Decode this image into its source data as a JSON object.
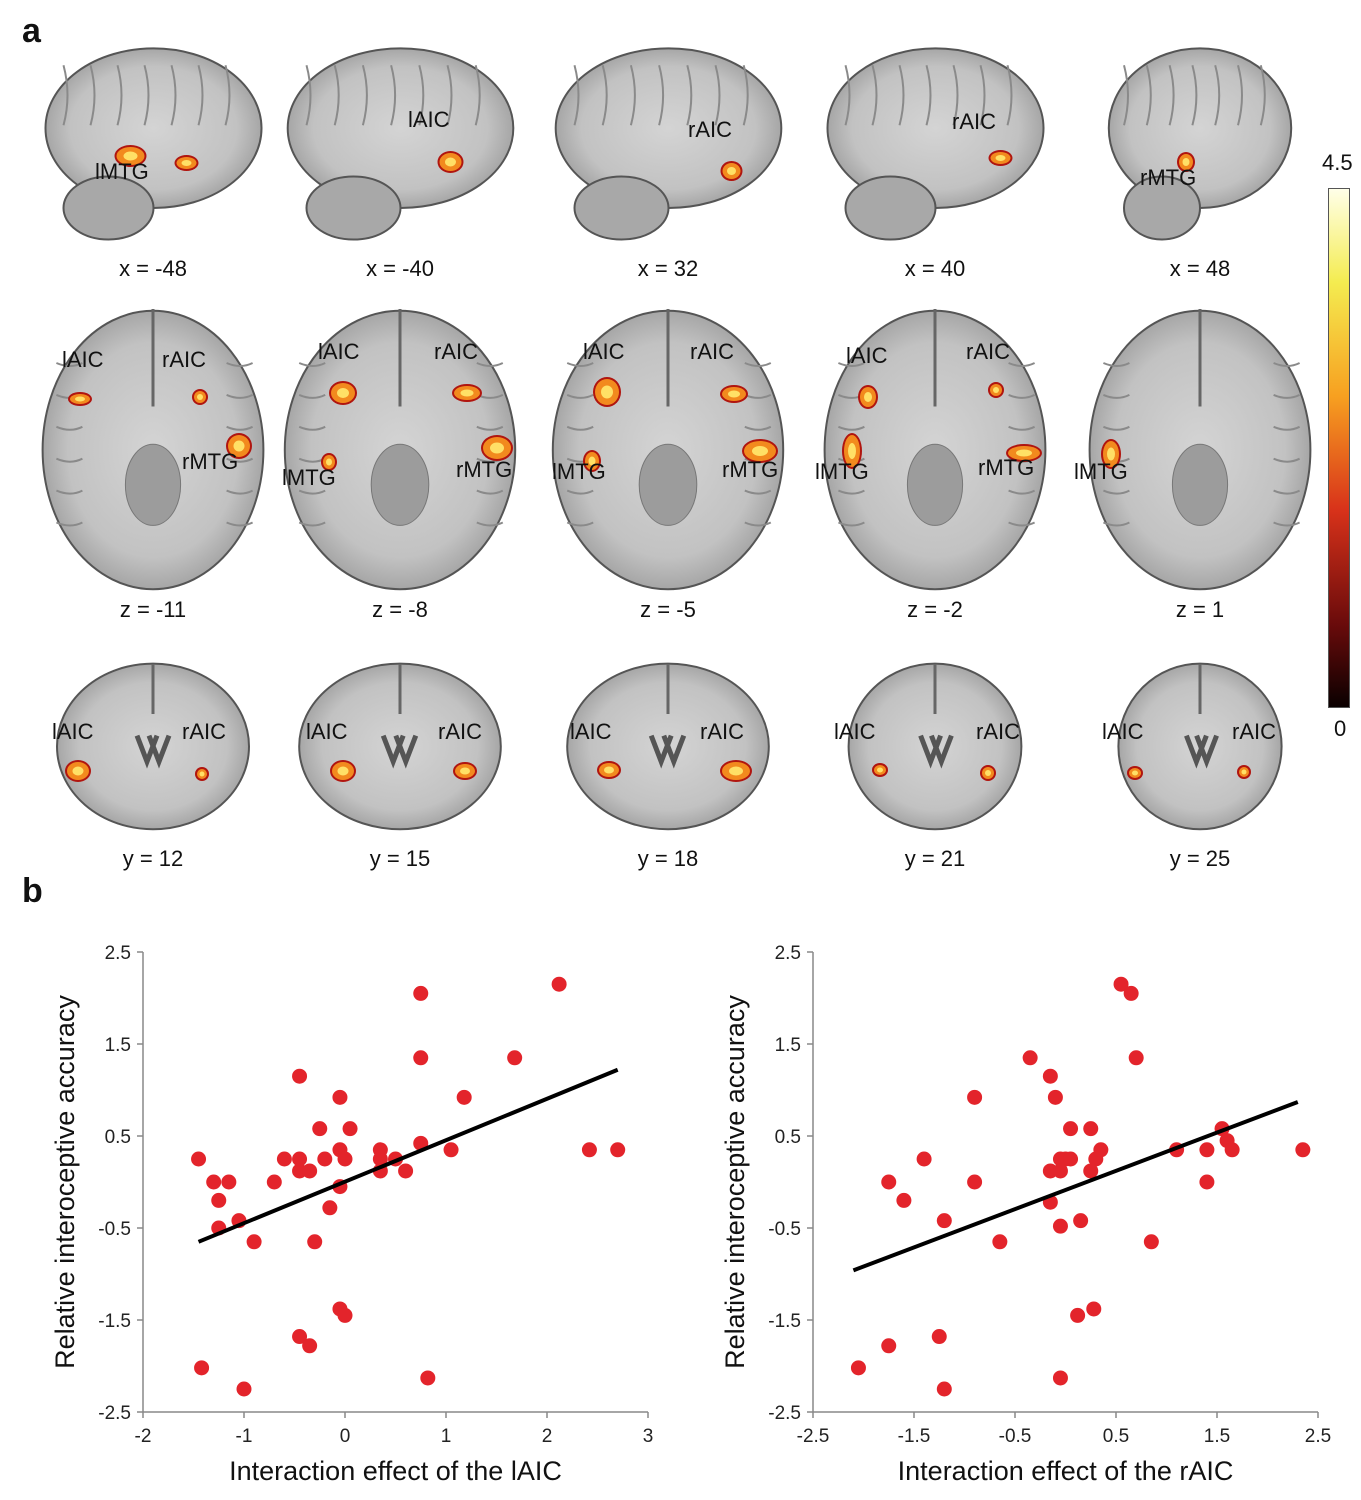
{
  "panel_a": {
    "letter": "a",
    "colorbar": {
      "max_label": "4.5",
      "min_label": "0"
    },
    "sagittal": [
      {
        "coord": "x = -48",
        "regions": [
          "lMTG"
        ]
      },
      {
        "coord": "x = -40",
        "regions": [
          "lAIC"
        ]
      },
      {
        "coord": "x = 32",
        "regions": [
          "rAIC"
        ]
      },
      {
        "coord": "x = 40",
        "regions": [
          "rAIC"
        ]
      },
      {
        "coord": "x = 48",
        "regions": [
          "rMTG"
        ]
      }
    ],
    "axial": [
      {
        "coord": "z = -11",
        "regions": [
          "lAIC",
          "rAIC",
          "rMTG"
        ]
      },
      {
        "coord": "z = -8",
        "regions": [
          "lAIC",
          "rAIC",
          "lMTG",
          "rMTG"
        ]
      },
      {
        "coord": "z = -5",
        "regions": [
          "lAIC",
          "rAIC",
          "lMTG",
          "rMTG"
        ]
      },
      {
        "coord": "z = -2",
        "regions": [
          "lAIC",
          "rAIC",
          "lMTG",
          "rMTG"
        ]
      },
      {
        "coord": "z = 1",
        "regions": [
          "lMTG"
        ]
      }
    ],
    "coronal": [
      {
        "coord": "y = 12",
        "regions": [
          "lAIC",
          "rAIC"
        ]
      },
      {
        "coord": "y = 15",
        "regions": [
          "lAIC",
          "rAIC"
        ]
      },
      {
        "coord": "y = 18",
        "regions": [
          "lAIC",
          "rAIC"
        ]
      },
      {
        "coord": "y = 21",
        "regions": [
          "lAIC",
          "rAIC"
        ]
      },
      {
        "coord": "y = 25",
        "regions": [
          "lAIC",
          "rAIC"
        ]
      }
    ]
  },
  "panel_b": {
    "letter": "b"
  },
  "colors": {
    "point": "#e3242b",
    "line": "#000000",
    "axis": "#888888"
  },
  "chart_data": [
    {
      "type": "scatter",
      "xlabel": "Interaction effect of the lAIC",
      "ylabel": "Relative interoceptive accuracy",
      "xlim": [
        -2,
        3
      ],
      "ylim": [
        -2.5,
        2.5
      ],
      "xticks": [
        -2,
        -1,
        0,
        1,
        2,
        3
      ],
      "yticks": [
        2.5,
        1.5,
        0.5,
        -0.5,
        -1.5,
        -2.5
      ],
      "xtick_labels": [
        "-2",
        "-1",
        "0",
        "1",
        "2",
        "3"
      ],
      "ytick_labels": [
        "2.5",
        "1.5",
        "0.5",
        "-0.5",
        "-1.5",
        "-2.5"
      ],
      "fit_line": {
        "x": [
          -1.45,
          2.7
        ],
        "y": [
          -0.65,
          1.22
        ]
      },
      "points": [
        [
          -1.45,
          0.25
        ],
        [
          -1.3,
          0.0
        ],
        [
          -1.15,
          0.0
        ],
        [
          -1.25,
          -0.2
        ],
        [
          -1.25,
          -0.5
        ],
        [
          -1.05,
          -0.42
        ],
        [
          -0.9,
          -0.65
        ],
        [
          -0.7,
          0.0
        ],
        [
          -0.6,
          0.25
        ],
        [
          -0.45,
          0.12
        ],
        [
          -0.45,
          0.25
        ],
        [
          -0.45,
          1.15
        ],
        [
          -0.25,
          0.58
        ],
        [
          -0.35,
          0.12
        ],
        [
          -0.2,
          0.25
        ],
        [
          -0.05,
          0.92
        ],
        [
          -0.05,
          0.35
        ],
        [
          0.05,
          0.58
        ],
        [
          0.0,
          0.25
        ],
        [
          -0.05,
          -0.05
        ],
        [
          -0.15,
          -0.28
        ],
        [
          -0.3,
          -0.65
        ],
        [
          -0.05,
          -1.38
        ],
        [
          0.0,
          -1.45
        ],
        [
          -0.45,
          -1.68
        ],
        [
          -0.35,
          -1.78
        ],
        [
          -1.42,
          -2.02
        ],
        [
          -1.0,
          -2.25
        ],
        [
          0.35,
          0.12
        ],
        [
          0.35,
          0.25
        ],
        [
          0.35,
          0.35
        ],
        [
          0.5,
          0.25
        ],
        [
          0.6,
          0.12
        ],
        [
          0.75,
          0.42
        ],
        [
          0.75,
          1.35
        ],
        [
          0.75,
          2.05
        ],
        [
          1.05,
          0.35
        ],
        [
          1.18,
          0.92
        ],
        [
          1.68,
          1.35
        ],
        [
          2.12,
          2.15
        ],
        [
          2.42,
          0.35
        ],
        [
          2.7,
          0.35
        ],
        [
          0.82,
          -2.13
        ]
      ]
    },
    {
      "type": "scatter",
      "xlabel": "Interaction effect of the rAIC",
      "ylabel": "Relative interoceptive accuracy",
      "xlim": [
        -2.5,
        2.5
      ],
      "ylim": [
        -2.5,
        2.5
      ],
      "xticks": [
        -2.5,
        -1.5,
        -0.5,
        0.5,
        1.5,
        2.5
      ],
      "yticks": [
        2.5,
        1.5,
        0.5,
        -0.5,
        -1.5,
        -2.5
      ],
      "xtick_labels": [
        "-2.5",
        "-1.5",
        "-0.5",
        "0.5",
        "1.5",
        "2.5"
      ],
      "ytick_labels": [
        "2.5",
        "1.5",
        "0.5",
        "-0.5",
        "-1.5",
        "-2.5"
      ],
      "fit_line": {
        "x": [
          -2.1,
          2.3
        ],
        "y": [
          -0.96,
          0.87
        ]
      },
      "points": [
        [
          -1.75,
          0.0
        ],
        [
          -1.4,
          0.25
        ],
        [
          -1.6,
          -0.2
        ],
        [
          -1.2,
          -0.42
        ],
        [
          -0.9,
          0.92
        ],
        [
          -0.9,
          0.0
        ],
        [
          -0.65,
          -0.65
        ],
        [
          -0.35,
          1.35
        ],
        [
          -0.15,
          1.15
        ],
        [
          -0.15,
          0.12
        ],
        [
          -0.1,
          0.92
        ],
        [
          -0.05,
          0.25
        ],
        [
          0.0,
          0.25
        ],
        [
          -0.05,
          0.12
        ],
        [
          0.05,
          0.25
        ],
        [
          -0.15,
          -0.22
        ],
        [
          0.05,
          0.58
        ],
        [
          -0.05,
          -0.48
        ],
        [
          0.15,
          -0.42
        ],
        [
          0.25,
          0.58
        ],
        [
          0.3,
          0.25
        ],
        [
          0.25,
          0.12
        ],
        [
          0.35,
          0.35
        ],
        [
          0.12,
          -1.45
        ],
        [
          0.28,
          -1.38
        ],
        [
          -0.05,
          -2.13
        ],
        [
          -1.25,
          -1.68
        ],
        [
          -1.2,
          -2.25
        ],
        [
          -1.75,
          -1.78
        ],
        [
          -2.05,
          -2.02
        ],
        [
          0.55,
          2.15
        ],
        [
          0.65,
          2.05
        ],
        [
          0.7,
          1.35
        ],
        [
          0.85,
          -0.65
        ],
        [
          1.1,
          0.35
        ],
        [
          1.4,
          0.35
        ],
        [
          1.4,
          0.0
        ],
        [
          1.55,
          0.58
        ],
        [
          1.6,
          0.45
        ],
        [
          1.65,
          0.35
        ],
        [
          2.35,
          0.35
        ]
      ]
    }
  ]
}
